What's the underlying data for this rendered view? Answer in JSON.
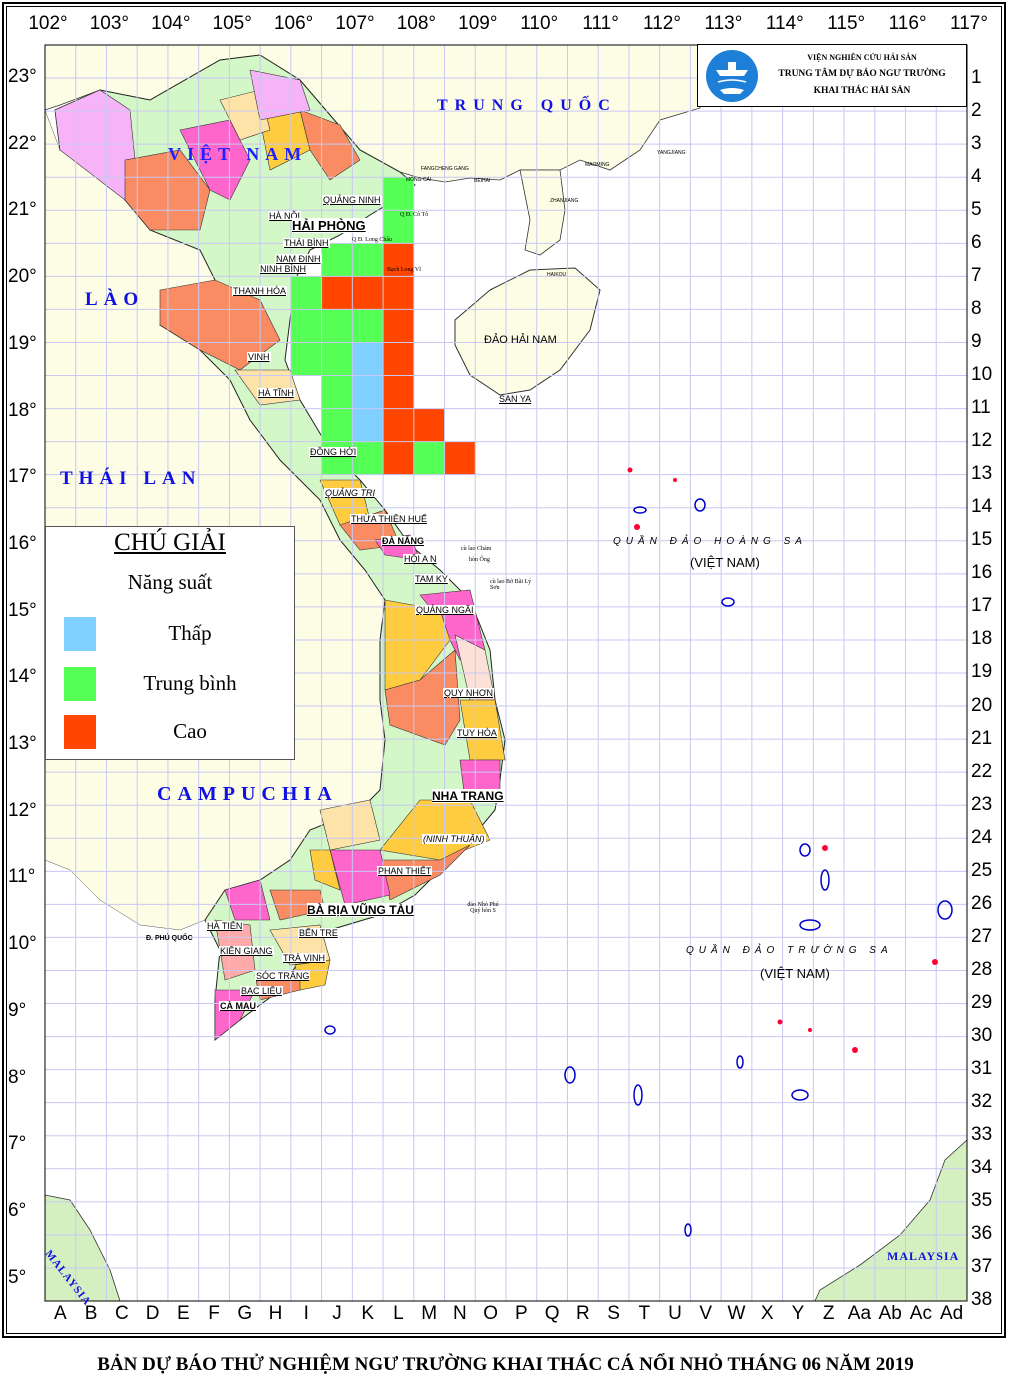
{
  "map": {
    "longitude_labels": [
      "102°",
      "103°",
      "104°",
      "105°",
      "106°",
      "107°",
      "108°",
      "109°",
      "110°",
      "111°",
      "112°",
      "113°",
      "114°",
      "115°",
      "116°",
      "117°"
    ],
    "latitude_labels": [
      "23°",
      "22°",
      "21°",
      "20°",
      "19°",
      "18°",
      "17°",
      "16°",
      "15°",
      "14°",
      "13°",
      "12°",
      "11°",
      "10°",
      "9°",
      "8°",
      "7°",
      "6°",
      "5°"
    ],
    "column_labels": [
      "A",
      "B",
      "C",
      "D",
      "E",
      "F",
      "G",
      "H",
      "I",
      "J",
      "K",
      "L",
      "M",
      "N",
      "O",
      "P",
      "Q",
      "R",
      "S",
      "T",
      "U",
      "V",
      "W",
      "X",
      "Y",
      "Z",
      "Aa",
      "Ab",
      "Ac",
      "Ad"
    ],
    "row_labels": [
      "1",
      "2",
      "3",
      "4",
      "5",
      "6",
      "7",
      "8",
      "9",
      "10",
      "11",
      "12",
      "13",
      "14",
      "15",
      "16",
      "17",
      "18",
      "19",
      "20",
      "21",
      "22",
      "23",
      "24",
      "25",
      "26",
      "27",
      "28",
      "29",
      "30",
      "31",
      "32",
      "33",
      "34",
      "35",
      "36",
      "37",
      "38"
    ],
    "colors": {
      "thap": "#80d0ff",
      "trung_binh": "#55ff55",
      "cao": "#ff4500",
      "grid": "#c8c8f2",
      "land_other": "#fdfde6",
      "sea": "#ffffff",
      "country_label": "#1010e0"
    },
    "forecast_cells": [
      {
        "col": "L",
        "row": 5,
        "level": "trung_binh"
      },
      {
        "col": "L",
        "row": 6,
        "level": "trung_binh"
      },
      {
        "col": "J",
        "row": 7,
        "level": "trung_binh"
      },
      {
        "col": "K",
        "row": 7,
        "level": "trung_binh"
      },
      {
        "col": "L",
        "row": 7,
        "level": "cao"
      },
      {
        "col": "I",
        "row": 8,
        "level": "trung_binh"
      },
      {
        "col": "J",
        "row": 8,
        "level": "cao"
      },
      {
        "col": "K",
        "row": 8,
        "level": "cao"
      },
      {
        "col": "L",
        "row": 8,
        "level": "cao"
      },
      {
        "col": "I",
        "row": 9,
        "level": "trung_binh"
      },
      {
        "col": "J",
        "row": 9,
        "level": "trung_binh"
      },
      {
        "col": "K",
        "row": 9,
        "level": "trung_binh"
      },
      {
        "col": "L",
        "row": 9,
        "level": "cao"
      },
      {
        "col": "I",
        "row": 10,
        "level": "trung_binh"
      },
      {
        "col": "J",
        "row": 10,
        "level": "trung_binh"
      },
      {
        "col": "K",
        "row": 10,
        "level": "thap"
      },
      {
        "col": "L",
        "row": 10,
        "level": "cao"
      },
      {
        "col": "J",
        "row": 11,
        "level": "trung_binh"
      },
      {
        "col": "K",
        "row": 11,
        "level": "thap"
      },
      {
        "col": "L",
        "row": 11,
        "level": "cao"
      },
      {
        "col": "J",
        "row": 12,
        "level": "trung_binh"
      },
      {
        "col": "K",
        "row": 12,
        "level": "thap"
      },
      {
        "col": "L",
        "row": 12,
        "level": "cao"
      },
      {
        "col": "M",
        "row": 12,
        "level": "cao"
      },
      {
        "col": "J",
        "row": 13,
        "level": "trung_binh"
      },
      {
        "col": "K",
        "row": 13,
        "level": "trung_binh"
      },
      {
        "col": "L",
        "row": 13,
        "level": "cao"
      },
      {
        "col": "M",
        "row": 13,
        "level": "trung_binh"
      },
      {
        "col": "N",
        "row": 13,
        "level": "cao"
      }
    ]
  },
  "countries": {
    "china": "TRUNG QUỐC",
    "vietnam": "VIỆT NAM",
    "laos": "LÀO",
    "thailand": "THÁI LAN",
    "cambodia": "CAMPUCHIA",
    "malaysia_west": "MALAYSIA",
    "malaysia_east": "MALAYSIA"
  },
  "places": {
    "quang_ninh": "QUẢNG NINH",
    "ha_noi": "HÀ NỘI",
    "hai_phong": "HẢI PHÒNG",
    "thai_binh": "THÁI BÌNH",
    "nam_dinh": "NAM ĐỊNH",
    "ninh_binh": "NINH BÌNH",
    "thanh_hoa": "THANH HÓA",
    "vinh": "VINH",
    "ha_tinh": "HÀ TĨNH",
    "dong_hoi": "ĐỒNG HỚI",
    "quang_tri": "QUẢNG TRỊ",
    "hue": "THỪA THIÊN HUẾ",
    "da_nang": "ĐÀ NẴNG",
    "hoi_an": "HỘI A N",
    "tam_ky": "TAM KỲ",
    "quang_ngai": "QUẢNG NGÃI",
    "quy_nhon": "QUY NHƠN",
    "tuy_hoa": "TUY HÒA",
    "nha_trang": "NHA TRANG",
    "ninh_thuan": "(NINH THUẬN)",
    "phan_thiet": "PHAN THIẾT",
    "vung_tau": "BÀ RỊA VŨNG TÀU",
    "ben_tre": "BẾN TRE",
    "tra_vinh": "TRÀ VINH",
    "soc_trang": "SÓC TRĂNG",
    "bac_lieu": "BẠC LIÊU",
    "ca_mau": "CÀ MAU",
    "kien_giang": "KIÊN GIANG",
    "ha_tien": "HÀ TIÊN",
    "phu_quoc": "Đ. PHÚ QUỐC",
    "hai_nam": "ĐẢO HẢI NAM",
    "san_ya": "SAN YA",
    "fangcheng": "FANGCHENG GANG",
    "mong_cai": "MÓNG CÁI",
    "beihai": "BEIHAI",
    "maoming": "MAOMING",
    "zhanjiang": "ZHANJIANG",
    "yangjiang": "YANGJIANG",
    "haikou": "HAIKOU",
    "co_to": "Q Đ. Cô Tô",
    "long_chau": "Q Đ. Long Châu",
    "bach_long_vi": "Bạch Long Vĩ",
    "cu_lao_cham": "cù lao Chàm",
    "hon_ong": "hòn Ông",
    "ly_son": "cù lao Bờ Bãi Lý Sơn",
    "phu_quy": "đảo Nhỏ Phú Quý hòn S",
    "hoang_sa": "QUẦN ĐẢO HOÀNG SA",
    "hoang_sa_vn": "(VIỆT NAM)",
    "truong_sa": "QUẦN ĐẢO TRƯỜNG SA",
    "truong_sa_vn": "(VIỆT NAM)"
  },
  "legend": {
    "title": "CHÚ GIẢI",
    "subtitle": "Năng suất",
    "items": [
      {
        "label": "Thấp",
        "level": "thap"
      },
      {
        "label": "Trung bình",
        "level": "trung_binh"
      },
      {
        "label": "Cao",
        "level": "cao"
      }
    ]
  },
  "logo": {
    "line1": "VIỆN NGHIÊN CỨU HẢI SẢN",
    "line2": "TRUNG TÂM DỰ BÁO NGƯ TRƯỜNG",
    "line3": "KHAI THÁC HẢI SẢN",
    "icon": "ship-fish-logo"
  },
  "footer": {
    "title": "BẢN DỰ BÁO THỬ NGHIỆM NGƯ TRƯỜNG KHAI THÁC CÁ NỔI NHỎ THÁNG 06 NĂM 2019"
  }
}
